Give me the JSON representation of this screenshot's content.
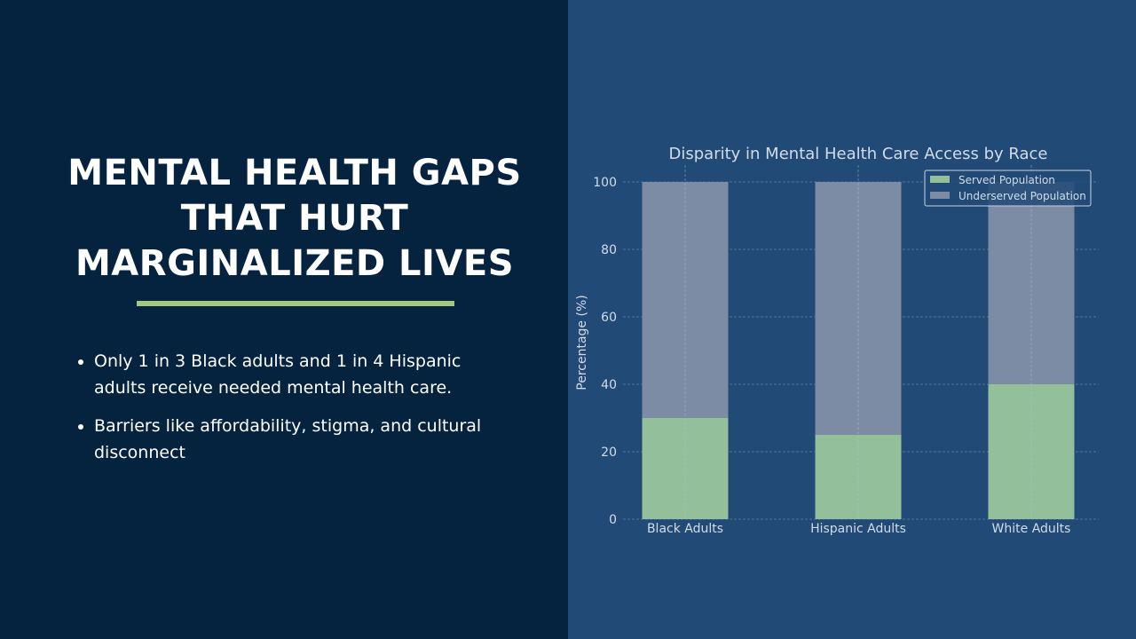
{
  "slide": {
    "title": "MENTAL HEALTH GAPS\nTHAT HURT\nMARGINALIZED LIVES",
    "bullets": [
      "Only 1 in 3 Black adults and 1 in 4 Hispanic adults receive needed mental health care.",
      "Barriers like affordability, stigma, and cultural disconnect"
    ]
  },
  "colors": {
    "left_bg": "#05233f",
    "right_bg": "#214a77",
    "accent_rule": "#a3c97f",
    "served": "#93bf9a",
    "underserved": "#7b8ca4"
  },
  "chart_data": {
    "type": "bar",
    "stacked": true,
    "title": "Disparity in Mental Health Care Access by Race",
    "xlabel": "",
    "ylabel": "Percentage (%)",
    "ylim": [
      0,
      100
    ],
    "yticks": [
      0,
      20,
      40,
      60,
      80,
      100
    ],
    "grid": true,
    "legend_position": "top-right",
    "categories": [
      "Black Adults",
      "Hispanic Adults",
      "White Adults"
    ],
    "series": [
      {
        "name": "Served Population",
        "values": [
          30,
          25,
          40
        ]
      },
      {
        "name": "Underserved Population",
        "values": [
          70,
          75,
          60
        ]
      }
    ]
  }
}
